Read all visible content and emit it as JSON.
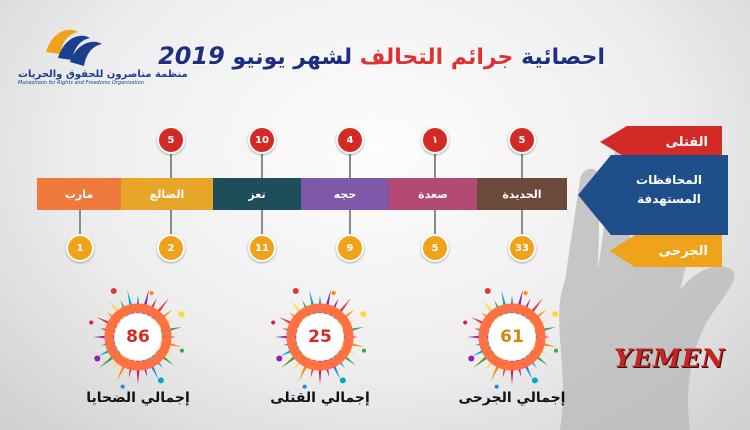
{
  "logo": {
    "name_ar": "منظمة مناصرون للحقوق والحريات",
    "name_en": "Munasiroon for Rights and Freedoms Organization",
    "icon": "logo-mark-icon",
    "colors": [
      "#1b3f8f",
      "#f0a21a"
    ]
  },
  "title": {
    "part1": "احصائية ",
    "part2": "جرائم التحالف ",
    "part3": "لشهر يونيو ",
    "year": "2019"
  },
  "legend": {
    "killed_label": "القتلى",
    "target_label_line1": "المحافظات",
    "target_label_line2": "المستهدفة",
    "injured_label": "الجرحى",
    "killed_color": "#d42a25",
    "target_color": "#1f4f8b",
    "injured_color": "#f0a21a"
  },
  "governorates": [
    {
      "name": "مارب",
      "color": "#f07a3c",
      "killed": "",
      "injured": "1"
    },
    {
      "name": "الضالع",
      "color": "#e8a628",
      "killed": "5",
      "injured": "2"
    },
    {
      "name": "تعز",
      "color": "#1e4e5a",
      "killed": "10",
      "injured": "11"
    },
    {
      "name": "حجه",
      "color": "#7e57a8",
      "killed": "4",
      "injured": "9"
    },
    {
      "name": "صعدة",
      "color": "#b24a73",
      "killed": "١",
      "injured": "5"
    },
    {
      "name": "الحديدة",
      "color": "#6b4a3c",
      "killed": "5",
      "injured": "33"
    }
  ],
  "totals": [
    {
      "label": "إجمالي الضحايا",
      "value": "86",
      "color": "#d42a25"
    },
    {
      "label": "إجمالي القتلى",
      "value": "25",
      "color": "#d42a25"
    },
    {
      "label": "إجمالي الجرحى",
      "value": "61",
      "color": "#c98a12"
    }
  ],
  "country": "YEMEN"
}
